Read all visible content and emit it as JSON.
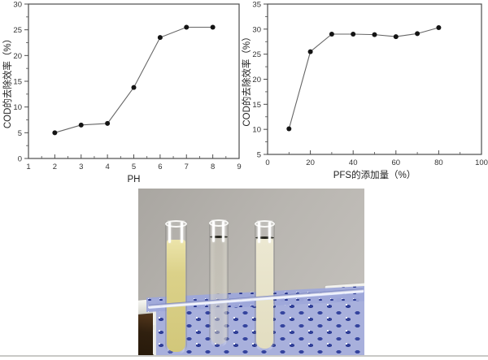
{
  "page": {
    "background": "#ffffff"
  },
  "chart_data": [
    {
      "type": "line",
      "title": "",
      "xlabel": "PH",
      "ylabel": "COD的去除效率（%）",
      "x": [
        2,
        3,
        4,
        5,
        6,
        7,
        8
      ],
      "y": [
        5.0,
        6.5,
        6.8,
        13.8,
        23.5,
        25.5,
        25.5
      ],
      "xlim": [
        1,
        9
      ],
      "ylim": [
        0,
        30
      ],
      "xticks": [
        1,
        2,
        3,
        4,
        5,
        6,
        7,
        8,
        9
      ],
      "yticks": [
        0,
        5,
        10,
        15,
        20,
        25,
        30
      ],
      "grid": false,
      "legend_position": "none",
      "marker": "circle",
      "line_color": "#666666",
      "marker_color": "#141414"
    },
    {
      "type": "line",
      "title": "",
      "xlabel": "PFS的添加量（%）",
      "ylabel": "COD的去除效率（%）",
      "x": [
        10,
        20,
        30,
        40,
        50,
        60,
        70,
        80
      ],
      "y": [
        10.1,
        25.5,
        29.0,
        29.0,
        28.9,
        28.5,
        29.1,
        30.3
      ],
      "xlim": [
        0,
        100
      ],
      "ylim": [
        5,
        35
      ],
      "xticks": [
        0,
        20,
        40,
        60,
        80,
        100
      ],
      "yticks": [
        5,
        10,
        15,
        20,
        25,
        30,
        35
      ],
      "grid": false,
      "legend_position": "none",
      "marker": "circle",
      "line_color": "#666666",
      "marker_color": "#141414"
    }
  ],
  "photo": {
    "tube_count": 3,
    "colors": {
      "wall": "#b7b4af",
      "rack_frame": "#ededE8",
      "rack_plate": "#a3aedd",
      "rack_hole_dots": "#2e3d96",
      "table_wood": "#3a2412",
      "tube1_liquid": "#dcd288",
      "tube2_liquid": "#d2cebe",
      "tube3_liquid": "#e7e3c9"
    }
  }
}
